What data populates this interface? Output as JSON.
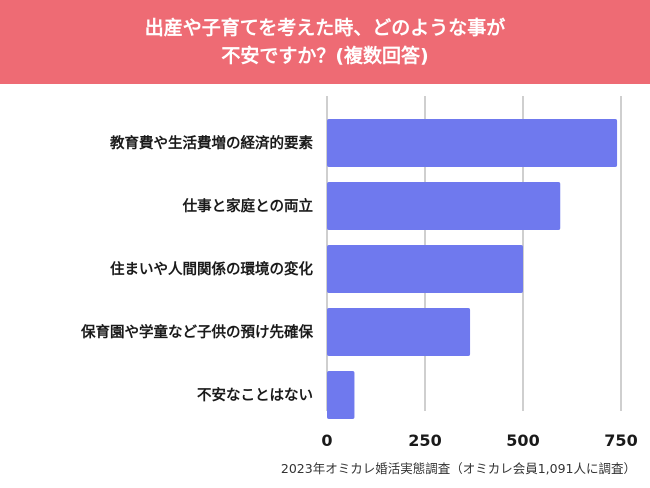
{
  "header": {
    "title_line1": "出産や子育てを考えた時、どのような事が",
    "title_line2": "不安ですか？(複数回答)"
  },
  "footer": {
    "source": "2023年オミカレ婚活実態調査（オミカレ会員1,091人に調査）"
  },
  "colors": {
    "header_bg": "#ee6b74",
    "bar": "#6f79ee",
    "grid": "#cfcfcf"
  },
  "chart_data": {
    "type": "bar",
    "orientation": "horizontal",
    "categories": [
      "教育費や生活費増の経済的要素",
      "仕事と家庭との両立",
      "住まいや人間関係の環境の変化",
      "保育園や学童など子供の預け先確保",
      "不安なことはない"
    ],
    "values": [
      740,
      595,
      500,
      365,
      70
    ],
    "xlim": [
      0,
      800
    ],
    "xticks": [
      0,
      250,
      500,
      750
    ],
    "tick_labels": [
      "0",
      "250",
      "500",
      "750"
    ],
    "grid": true
  }
}
